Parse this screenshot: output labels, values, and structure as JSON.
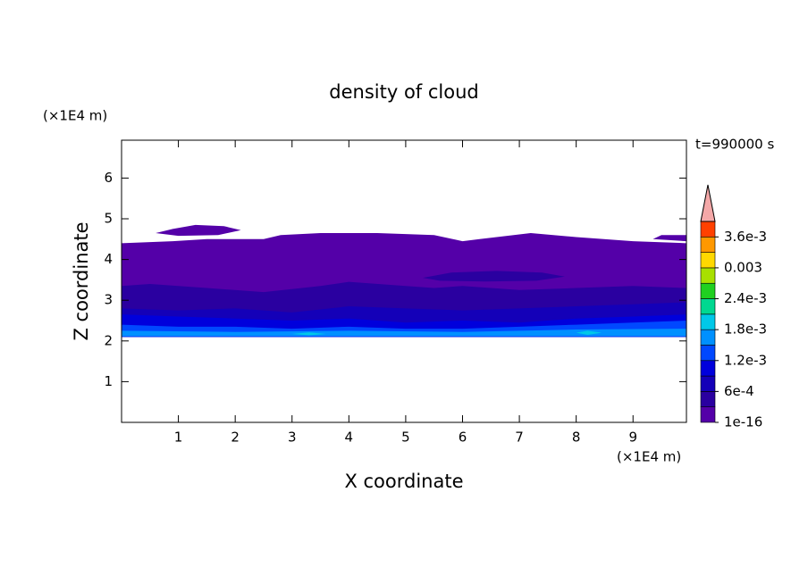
{
  "chart_data": {
    "type": "contour",
    "title": "density of cloud",
    "x_label": "X coordinate",
    "y_label": "Z coordinate",
    "x_unit": "(×1E4 m)",
    "y_unit": "(×1E4 m)",
    "time_label": "t=990000 s",
    "xlim": [
      0,
      9.94
    ],
    "ylim": [
      0,
      6.93
    ],
    "xticks": [
      1,
      2,
      3,
      4,
      5,
      6,
      7,
      8,
      9
    ],
    "yticks": [
      1,
      2,
      3,
      4,
      5,
      6
    ],
    "levels": [
      1e-16,
      0.0003,
      0.0006,
      0.0009,
      0.0012,
      0.0015,
      0.0018,
      0.0021,
      0.0024,
      0.0027,
      0.003,
      0.0033,
      0.0036
    ],
    "colors": [
      "#5400a8",
      "#2a00a0",
      "#1400b8",
      "#0000dc",
      "#0048ff",
      "#0090ff",
      "#00c8e8",
      "#00d890",
      "#20d020",
      "#a8e000",
      "#ffd800",
      "#ff9800",
      "#ff4000"
    ],
    "colorbar_ticks": [
      {
        "value": 1e-16,
        "label": "1e-16"
      },
      {
        "value": 0.0006,
        "label": "6e-4"
      },
      {
        "value": 0.0012,
        "label": "1.2e-3"
      },
      {
        "value": 0.0018,
        "label": "1.8e-3"
      },
      {
        "value": 0.0024,
        "label": "2.4e-3"
      },
      {
        "value": 0.003,
        "label": "0.003"
      },
      {
        "value": 0.0036,
        "label": "3.6e-3"
      }
    ],
    "contours": [
      {
        "level": 1e-16,
        "x": [
          0,
          0.9,
          1.5,
          2.5,
          2.8,
          3.5,
          4.5,
          5.5,
          6.0,
          6.3,
          6.9,
          7.2,
          8.0,
          9.0,
          9.94,
          9.94,
          0
        ],
        "z": [
          4.4,
          4.45,
          4.5,
          4.5,
          4.6,
          4.65,
          4.65,
          4.6,
          4.45,
          4.5,
          4.6,
          4.65,
          4.55,
          4.45,
          4.4,
          2.1,
          2.1
        ]
      },
      {
        "level": 1e-16,
        "x": [
          0.6,
          0.9,
          1.3,
          1.8,
          2.1,
          1.7,
          1.0
        ],
        "z": [
          4.65,
          4.75,
          4.85,
          4.82,
          4.72,
          4.6,
          4.58
        ]
      },
      {
        "level": 1e-16,
        "x": [
          9.35,
          9.5,
          9.94,
          9.94
        ],
        "z": [
          4.5,
          4.6,
          4.6,
          4.45
        ]
      },
      {
        "level": 0.0003,
        "x": [
          0,
          0.5,
          1.5,
          2.5,
          3.5,
          4.0,
          5.0,
          5.5,
          6.0,
          7.0,
          8.0,
          9.0,
          9.94,
          9.94,
          0
        ],
        "z": [
          3.35,
          3.4,
          3.3,
          3.2,
          3.35,
          3.45,
          3.35,
          3.3,
          3.35,
          3.25,
          3.3,
          3.35,
          3.3,
          2.1,
          2.1
        ]
      },
      {
        "level": 0.0003,
        "x": [
          5.3,
          5.8,
          6.6,
          7.4,
          7.8,
          7.3,
          6.4,
          5.6
        ],
        "z": [
          3.55,
          3.68,
          3.72,
          3.68,
          3.58,
          3.48,
          3.46,
          3.48
        ]
      },
      {
        "level": 0.0006,
        "x": [
          0,
          1,
          2,
          3,
          4,
          5,
          6,
          7,
          8,
          9,
          9.94,
          9.94,
          0
        ],
        "z": [
          2.8,
          2.75,
          2.8,
          2.7,
          2.85,
          2.8,
          2.75,
          2.8,
          2.85,
          2.9,
          2.95,
          2.1,
          2.1
        ]
      },
      {
        "level": 0.0009,
        "x": [
          0,
          1,
          2,
          3,
          4,
          5,
          6,
          7,
          8,
          9,
          9.94,
          9.94,
          0
        ],
        "z": [
          2.65,
          2.6,
          2.55,
          2.5,
          2.55,
          2.45,
          2.5,
          2.45,
          2.55,
          2.6,
          2.65,
          2.1,
          2.1
        ]
      },
      {
        "level": 0.0012,
        "x": [
          0,
          1,
          2,
          3,
          4,
          5,
          6,
          7,
          8,
          9,
          9.94,
          9.94,
          0
        ],
        "z": [
          2.4,
          2.35,
          2.35,
          2.3,
          2.35,
          2.3,
          2.3,
          2.35,
          2.4,
          2.45,
          2.5,
          2.1,
          2.1
        ]
      },
      {
        "level": 0.0015,
        "x": [
          0,
          2,
          4,
          6,
          8,
          9.94,
          9.94,
          0
        ],
        "z": [
          2.25,
          2.22,
          2.25,
          2.22,
          2.28,
          2.3,
          2.12,
          2.12
        ]
      },
      {
        "level": 0.0018,
        "x": [
          3.0,
          3.3,
          3.6,
          3.3
        ],
        "z": [
          2.17,
          2.21,
          2.17,
          2.14
        ]
      },
      {
        "level": 0.0018,
        "x": [
          8.0,
          8.2,
          8.45,
          8.2
        ],
        "z": [
          2.2,
          2.25,
          2.2,
          2.15
        ]
      }
    ]
  }
}
